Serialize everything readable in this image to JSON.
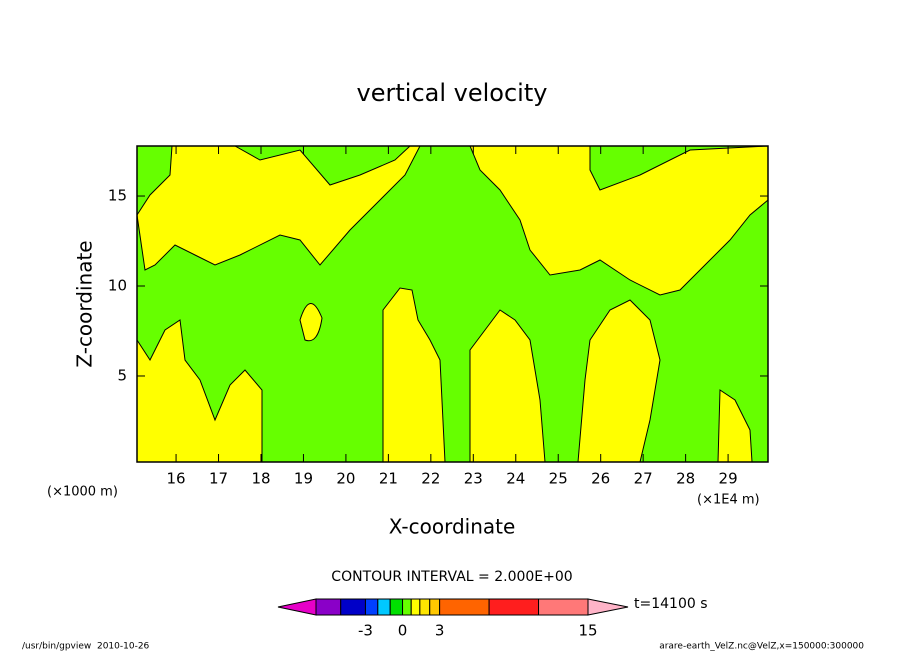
{
  "chart_data": {
    "type": "contour",
    "title": "vertical velocity",
    "xlabel": "X-coordinate",
    "ylabel": "Z-coordinate",
    "x_unit_label": "(×1000 m)",
    "x_scale_label": "(×1E4 m)",
    "xlim": [
      15.08,
      29.94
    ],
    "ylim": [
      0.22,
      17.78
    ],
    "xticks": [
      16,
      17,
      18,
      19,
      20,
      21,
      22,
      23,
      24,
      25,
      26,
      27,
      28,
      29
    ],
    "yticks": [
      5,
      10,
      15
    ],
    "contour_interval_label": "CONTOUR INTERVAL = 2.000E+00",
    "time_label": "t=14100 s",
    "colorbar": {
      "edges": [
        -7,
        -5,
        -3,
        -2,
        -1,
        0,
        0.7,
        1.4,
        2.2,
        3,
        7,
        11,
        15
      ],
      "colors": [
        "#8a00c8",
        "#0000c8",
        "#0040ff",
        "#00c8ff",
        "#00e000",
        "#66ff00",
        "#ffff00",
        "#ffe600",
        "#ffc800",
        "#ff6400",
        "#ff1e1e",
        "#ff7878"
      ],
      "under_color": "#e600c8",
      "over_color": "#ffb4c8",
      "ticks": [
        -3,
        0,
        3,
        15
      ]
    },
    "footer_left": "/usr/bin/gpview  2010-10-26",
    "footer_right": "arare-earth_VelZ.nc@VelZ,x=150000:300000"
  }
}
